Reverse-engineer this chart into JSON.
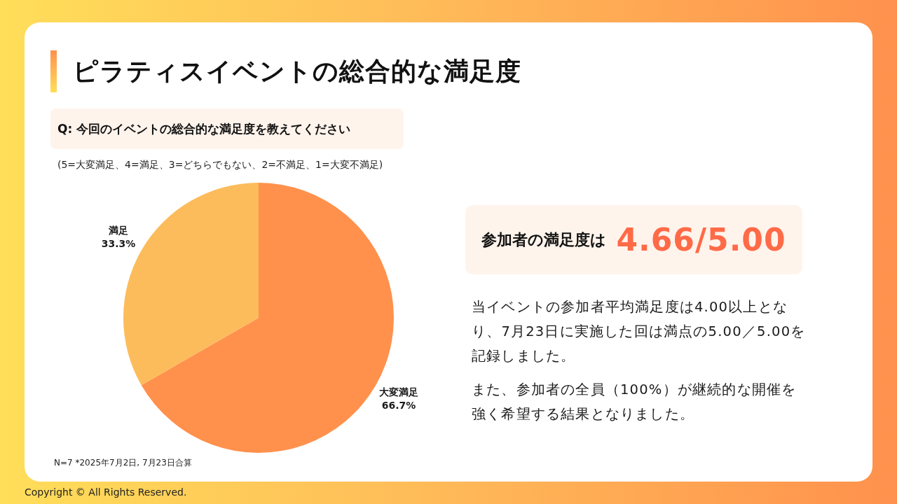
{
  "chart_data": {
    "type": "pie",
    "title": "ピラティスイベントの総合的な満足度",
    "subtitle": "Q: 今回のイベントの総合的な満足度を教えてください",
    "categories": [
      "大変満足",
      "満足"
    ],
    "values": [
      66.7,
      33.3
    ],
    "colors": [
      "#ff914d",
      "#fcbc5b"
    ],
    "value_labels": [
      "66.7%",
      "33.3%"
    ],
    "annotations": [
      "(5=大変満足、4=満足、3=どちらでもない、2=不満足、1=大変不満足)",
      "N=7 *2025年7月2日, 7月23日合算",
      "参加者の満足度は",
      "4.66/5.00",
      "当イベントの参加者平均満足度は4.00以上となり、7月23日に実施した回は満点の5.00／5.00を記録しました。",
      "また、参加者の全員（100%）が継続的な開催を強く希望する結果となりました。",
      "Copyright © All Rights Reserved."
    ]
  }
}
